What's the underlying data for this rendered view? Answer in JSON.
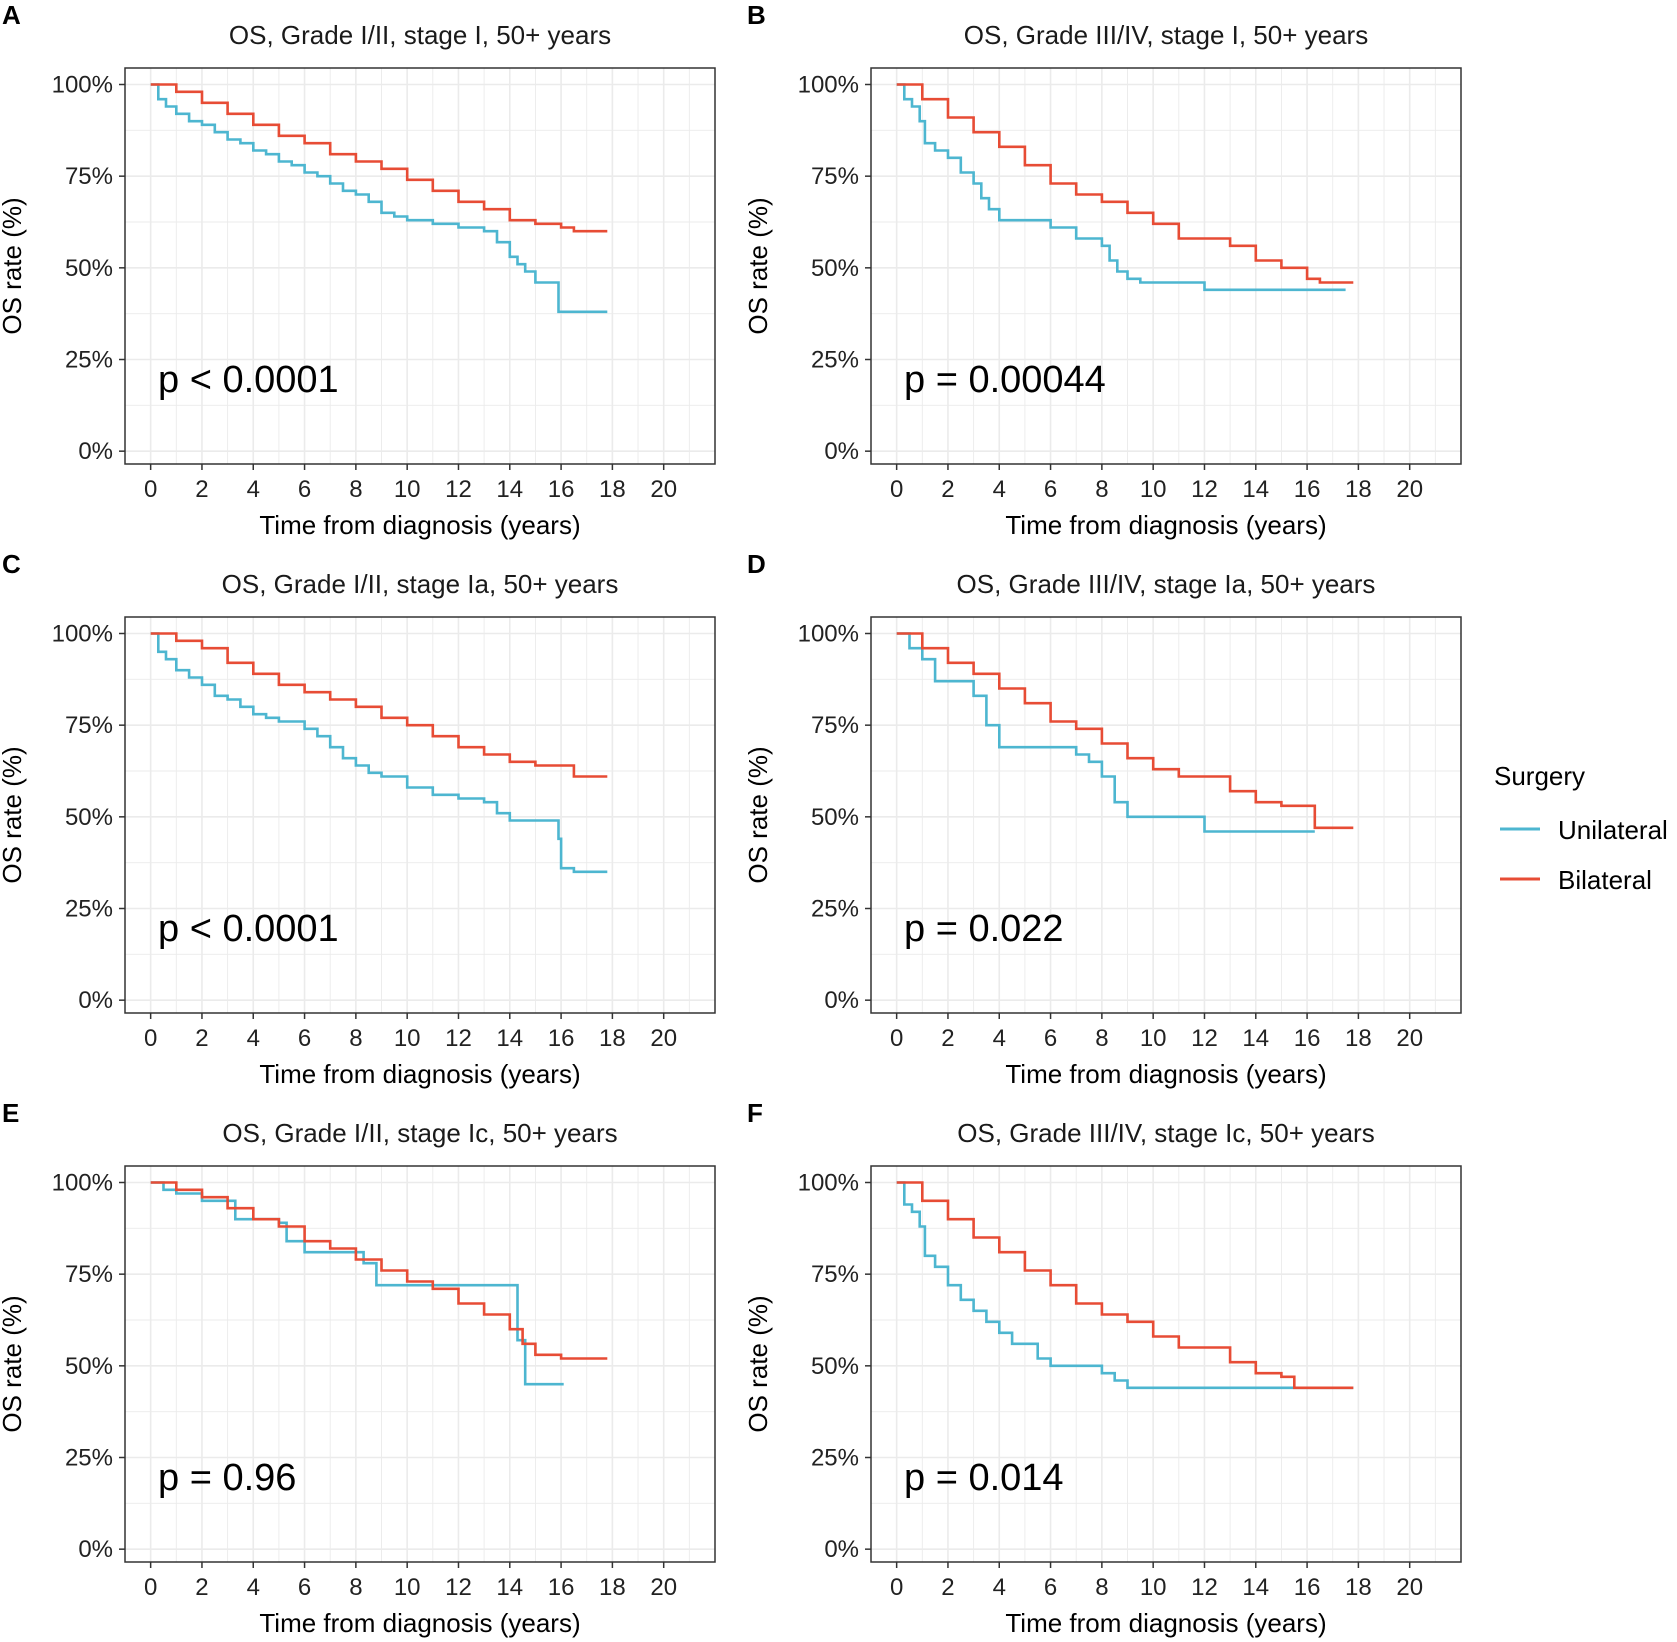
{
  "figure": {
    "legend": {
      "title": "Surgery",
      "placement": "right"
    }
  },
  "colors": {
    "unilateral": "#4db6d0",
    "bilateral": "#e74c35",
    "grid": "#ebebeb",
    "frame": "#333333"
  },
  "chart_data": [
    {
      "panel": "A",
      "type": "line",
      "title": "OS, Grade I/II, stage I, 50+ years",
      "xlabel": "Time from diagnosis (years)",
      "ylabel": "OS rate (%)",
      "xlim": [
        -1,
        22
      ],
      "ylim": [
        -3.5,
        104.5
      ],
      "xticks": [
        0,
        2,
        4,
        6,
        8,
        10,
        12,
        14,
        16,
        18,
        20
      ],
      "yticks": [
        0,
        25,
        50,
        75,
        100
      ],
      "ytick_labels": [
        "0%",
        "25%",
        "50%",
        "75%",
        "100%"
      ],
      "annotation": "p < 0.0001",
      "series": [
        {
          "name": "Unilateral",
          "key": "unilateral",
          "x": [
            0,
            0.3,
            0.6,
            1,
            1.5,
            2,
            2.5,
            3,
            3.5,
            4,
            4.5,
            5,
            5.5,
            6,
            6.5,
            7,
            7.5,
            8,
            8.5,
            9,
            9.5,
            10,
            11,
            12,
            13,
            13.5,
            14,
            14.3,
            14.6,
            15,
            15.3,
            15.9,
            16.5,
            17.8
          ],
          "y": [
            100,
            96,
            94,
            92,
            90,
            89,
            87,
            85,
            84,
            82,
            81,
            79,
            78,
            76,
            75,
            73,
            71,
            70,
            68,
            65,
            64,
            63,
            62,
            61,
            60,
            57,
            53,
            51,
            49,
            46,
            46,
            38,
            38,
            38
          ]
        },
        {
          "name": "Bilateral",
          "key": "bilateral",
          "x": [
            0,
            1,
            2,
            3,
            4,
            5,
            6,
            7,
            8,
            9,
            10,
            11,
            12,
            13,
            14,
            15,
            16,
            16.5,
            17.8
          ],
          "y": [
            100,
            98,
            95,
            92,
            89,
            86,
            84,
            81,
            79,
            77,
            74,
            71,
            68,
            66,
            63,
            62,
            61,
            60,
            60
          ]
        }
      ]
    },
    {
      "panel": "B",
      "type": "line",
      "title": "OS, Grade III/IV, stage I, 50+ years",
      "xlabel": "Time from diagnosis (years)",
      "ylabel": "OS rate (%)",
      "xlim": [
        -1,
        22
      ],
      "ylim": [
        -3.5,
        104.5
      ],
      "xticks": [
        0,
        2,
        4,
        6,
        8,
        10,
        12,
        14,
        16,
        18,
        20
      ],
      "yticks": [
        0,
        25,
        50,
        75,
        100
      ],
      "ytick_labels": [
        "0%",
        "25%",
        "50%",
        "75%",
        "100%"
      ],
      "annotation": "p = 0.00044",
      "series": [
        {
          "name": "Unilateral",
          "key": "unilateral",
          "x": [
            0,
            0.3,
            0.6,
            0.9,
            1.1,
            1.5,
            2,
            2.5,
            3,
            3.3,
            3.6,
            4,
            4.5,
            5,
            6,
            7,
            8,
            8.3,
            8.6,
            9,
            9.5,
            10,
            11,
            12,
            14,
            16,
            17.5
          ],
          "y": [
            100,
            96,
            94,
            90,
            84,
            82,
            80,
            76,
            73,
            69,
            66,
            63,
            63,
            63,
            61,
            58,
            56,
            52,
            49,
            47,
            46,
            46,
            46,
            44,
            44,
            44,
            44
          ]
        },
        {
          "name": "Bilateral",
          "key": "bilateral",
          "x": [
            0,
            1,
            2,
            3,
            4,
            5,
            6,
            7,
            8,
            9,
            10,
            11,
            12,
            13,
            14,
            15,
            16,
            16.5,
            17.8
          ],
          "y": [
            100,
            96,
            91,
            87,
            83,
            78,
            73,
            70,
            68,
            65,
            62,
            58,
            58,
            56,
            52,
            50,
            47,
            46,
            46
          ]
        }
      ]
    },
    {
      "panel": "C",
      "type": "line",
      "title": "OS, Grade I/II, stage Ia, 50+ years",
      "xlabel": "Time from diagnosis (years)",
      "ylabel": "OS rate (%)",
      "xlim": [
        -1,
        22
      ],
      "ylim": [
        -3.5,
        104.5
      ],
      "xticks": [
        0,
        2,
        4,
        6,
        8,
        10,
        12,
        14,
        16,
        18,
        20
      ],
      "yticks": [
        0,
        25,
        50,
        75,
        100
      ],
      "ytick_labels": [
        "0%",
        "25%",
        "50%",
        "75%",
        "100%"
      ],
      "annotation": "p < 0.0001",
      "series": [
        {
          "name": "Unilateral",
          "key": "unilateral",
          "x": [
            0,
            0.3,
            0.6,
            1,
            1.5,
            2,
            2.5,
            3,
            3.5,
            4,
            4.5,
            5,
            6,
            6.5,
            7,
            7.5,
            8,
            8.5,
            9,
            10,
            11,
            12,
            13,
            13.5,
            14,
            15,
            15.9,
            16,
            16.5,
            17.8
          ],
          "y": [
            100,
            95,
            93,
            90,
            88,
            86,
            83,
            82,
            80,
            78,
            77,
            76,
            74,
            72,
            69,
            66,
            64,
            62,
            61,
            58,
            56,
            55,
            54,
            51,
            49,
            49,
            44,
            36,
            35,
            35
          ]
        },
        {
          "name": "Bilateral",
          "key": "bilateral",
          "x": [
            0,
            1,
            2,
            3,
            4,
            5,
            6,
            7,
            8,
            9,
            10,
            11,
            12,
            13,
            14,
            15,
            16,
            16.5,
            17.8
          ],
          "y": [
            100,
            98,
            96,
            92,
            89,
            86,
            84,
            82,
            80,
            77,
            75,
            72,
            69,
            67,
            65,
            64,
            64,
            61,
            61
          ]
        }
      ]
    },
    {
      "panel": "D",
      "type": "line",
      "title": "OS, Grade III/IV, stage Ia, 50+ years",
      "xlabel": "Time from diagnosis (years)",
      "ylabel": "OS rate (%)",
      "xlim": [
        -1,
        22
      ],
      "ylim": [
        -3.5,
        104.5
      ],
      "xticks": [
        0,
        2,
        4,
        6,
        8,
        10,
        12,
        14,
        16,
        18,
        20
      ],
      "yticks": [
        0,
        25,
        50,
        75,
        100
      ],
      "ytick_labels": [
        "0%",
        "25%",
        "50%",
        "75%",
        "100%"
      ],
      "annotation": "p = 0.022",
      "series": [
        {
          "name": "Unilateral",
          "key": "unilateral",
          "x": [
            0,
            0.5,
            1,
            1.5,
            2,
            2.5,
            3,
            3.5,
            4,
            5,
            6,
            7,
            7.5,
            8,
            8.5,
            9,
            9.5,
            10,
            11,
            12,
            14,
            16,
            16.3
          ],
          "y": [
            100,
            96,
            93,
            87,
            87,
            87,
            83,
            75,
            69,
            69,
            69,
            67,
            65,
            61,
            54,
            50,
            50,
            50,
            50,
            46,
            46,
            46,
            46
          ]
        },
        {
          "name": "Bilateral",
          "key": "bilateral",
          "x": [
            0,
            1,
            2,
            3,
            4,
            5,
            6,
            7,
            8,
            9,
            10,
            11,
            12,
            13,
            14,
            15,
            16,
            16.3,
            17.8
          ],
          "y": [
            100,
            96,
            92,
            89,
            85,
            81,
            76,
            74,
            70,
            66,
            63,
            61,
            61,
            57,
            54,
            53,
            53,
            47,
            47
          ]
        }
      ]
    },
    {
      "panel": "E",
      "type": "line",
      "title": "OS, Grade I/II, stage Ic, 50+ years",
      "xlabel": "Time from diagnosis (years)",
      "ylabel": "OS rate (%)",
      "xlim": [
        -1,
        22
      ],
      "ylim": [
        -3.5,
        104.5
      ],
      "xticks": [
        0,
        2,
        4,
        6,
        8,
        10,
        12,
        14,
        16,
        18,
        20
      ],
      "yticks": [
        0,
        25,
        50,
        75,
        100
      ],
      "ytick_labels": [
        "0%",
        "25%",
        "50%",
        "75%",
        "100%"
      ],
      "annotation": "p = 0.96",
      "series": [
        {
          "name": "Unilateral",
          "key": "unilateral",
          "x": [
            0,
            0.5,
            1,
            2,
            3,
            3.3,
            4,
            5,
            5.3,
            6,
            7,
            8,
            8.3,
            8.8,
            9,
            10,
            11,
            13,
            14,
            14.3,
            14.6,
            15,
            15.5,
            16.1
          ],
          "y": [
            100,
            98,
            97,
            95,
            95,
            90,
            90,
            89,
            84,
            81,
            81,
            81,
            78,
            72,
            72,
            72,
            72,
            72,
            72,
            57,
            45,
            45,
            45,
            45
          ]
        },
        {
          "name": "Bilateral",
          "key": "bilateral",
          "x": [
            0,
            1,
            2,
            3,
            4,
            5,
            6,
            7,
            8,
            9,
            10,
            11,
            12,
            13,
            14,
            14.5,
            15,
            16,
            17.8
          ],
          "y": [
            100,
            98,
            96,
            93,
            90,
            88,
            84,
            82,
            79,
            76,
            73,
            71,
            67,
            64,
            60,
            56,
            53,
            52,
            52
          ]
        }
      ]
    },
    {
      "panel": "F",
      "type": "line",
      "title": "OS, Grade III/IV, stage Ic, 50+ years",
      "xlabel": "Time from diagnosis (years)",
      "ylabel": "OS rate (%)",
      "xlim": [
        -1,
        22
      ],
      "ylim": [
        -3.5,
        104.5
      ],
      "xticks": [
        0,
        2,
        4,
        6,
        8,
        10,
        12,
        14,
        16,
        18,
        20
      ],
      "yticks": [
        0,
        25,
        50,
        75,
        100
      ],
      "ytick_labels": [
        "0%",
        "25%",
        "50%",
        "75%",
        "100%"
      ],
      "annotation": "p = 0.014",
      "series": [
        {
          "name": "Unilateral",
          "key": "unilateral",
          "x": [
            0,
            0.3,
            0.6,
            0.9,
            1.1,
            1.5,
            2,
            2.5,
            3,
            3.5,
            4,
            4.5,
            5,
            5.5,
            6,
            7,
            8,
            8.5,
            9,
            10,
            12,
            14,
            16,
            17.8
          ],
          "y": [
            100,
            94,
            92,
            88,
            80,
            77,
            72,
            68,
            65,
            62,
            59,
            56,
            56,
            52,
            50,
            50,
            48,
            46,
            44,
            44,
            44,
            44,
            44,
            44
          ]
        },
        {
          "name": "Bilateral",
          "key": "bilateral",
          "x": [
            0,
            1,
            2,
            3,
            4,
            5,
            6,
            7,
            8,
            9,
            10,
            11,
            12,
            13,
            14,
            15,
            15.5,
            16,
            17.8
          ],
          "y": [
            100,
            95,
            90,
            85,
            81,
            76,
            72,
            67,
            64,
            62,
            58,
            55,
            55,
            51,
            48,
            47,
            44,
            44,
            44
          ]
        }
      ]
    }
  ]
}
